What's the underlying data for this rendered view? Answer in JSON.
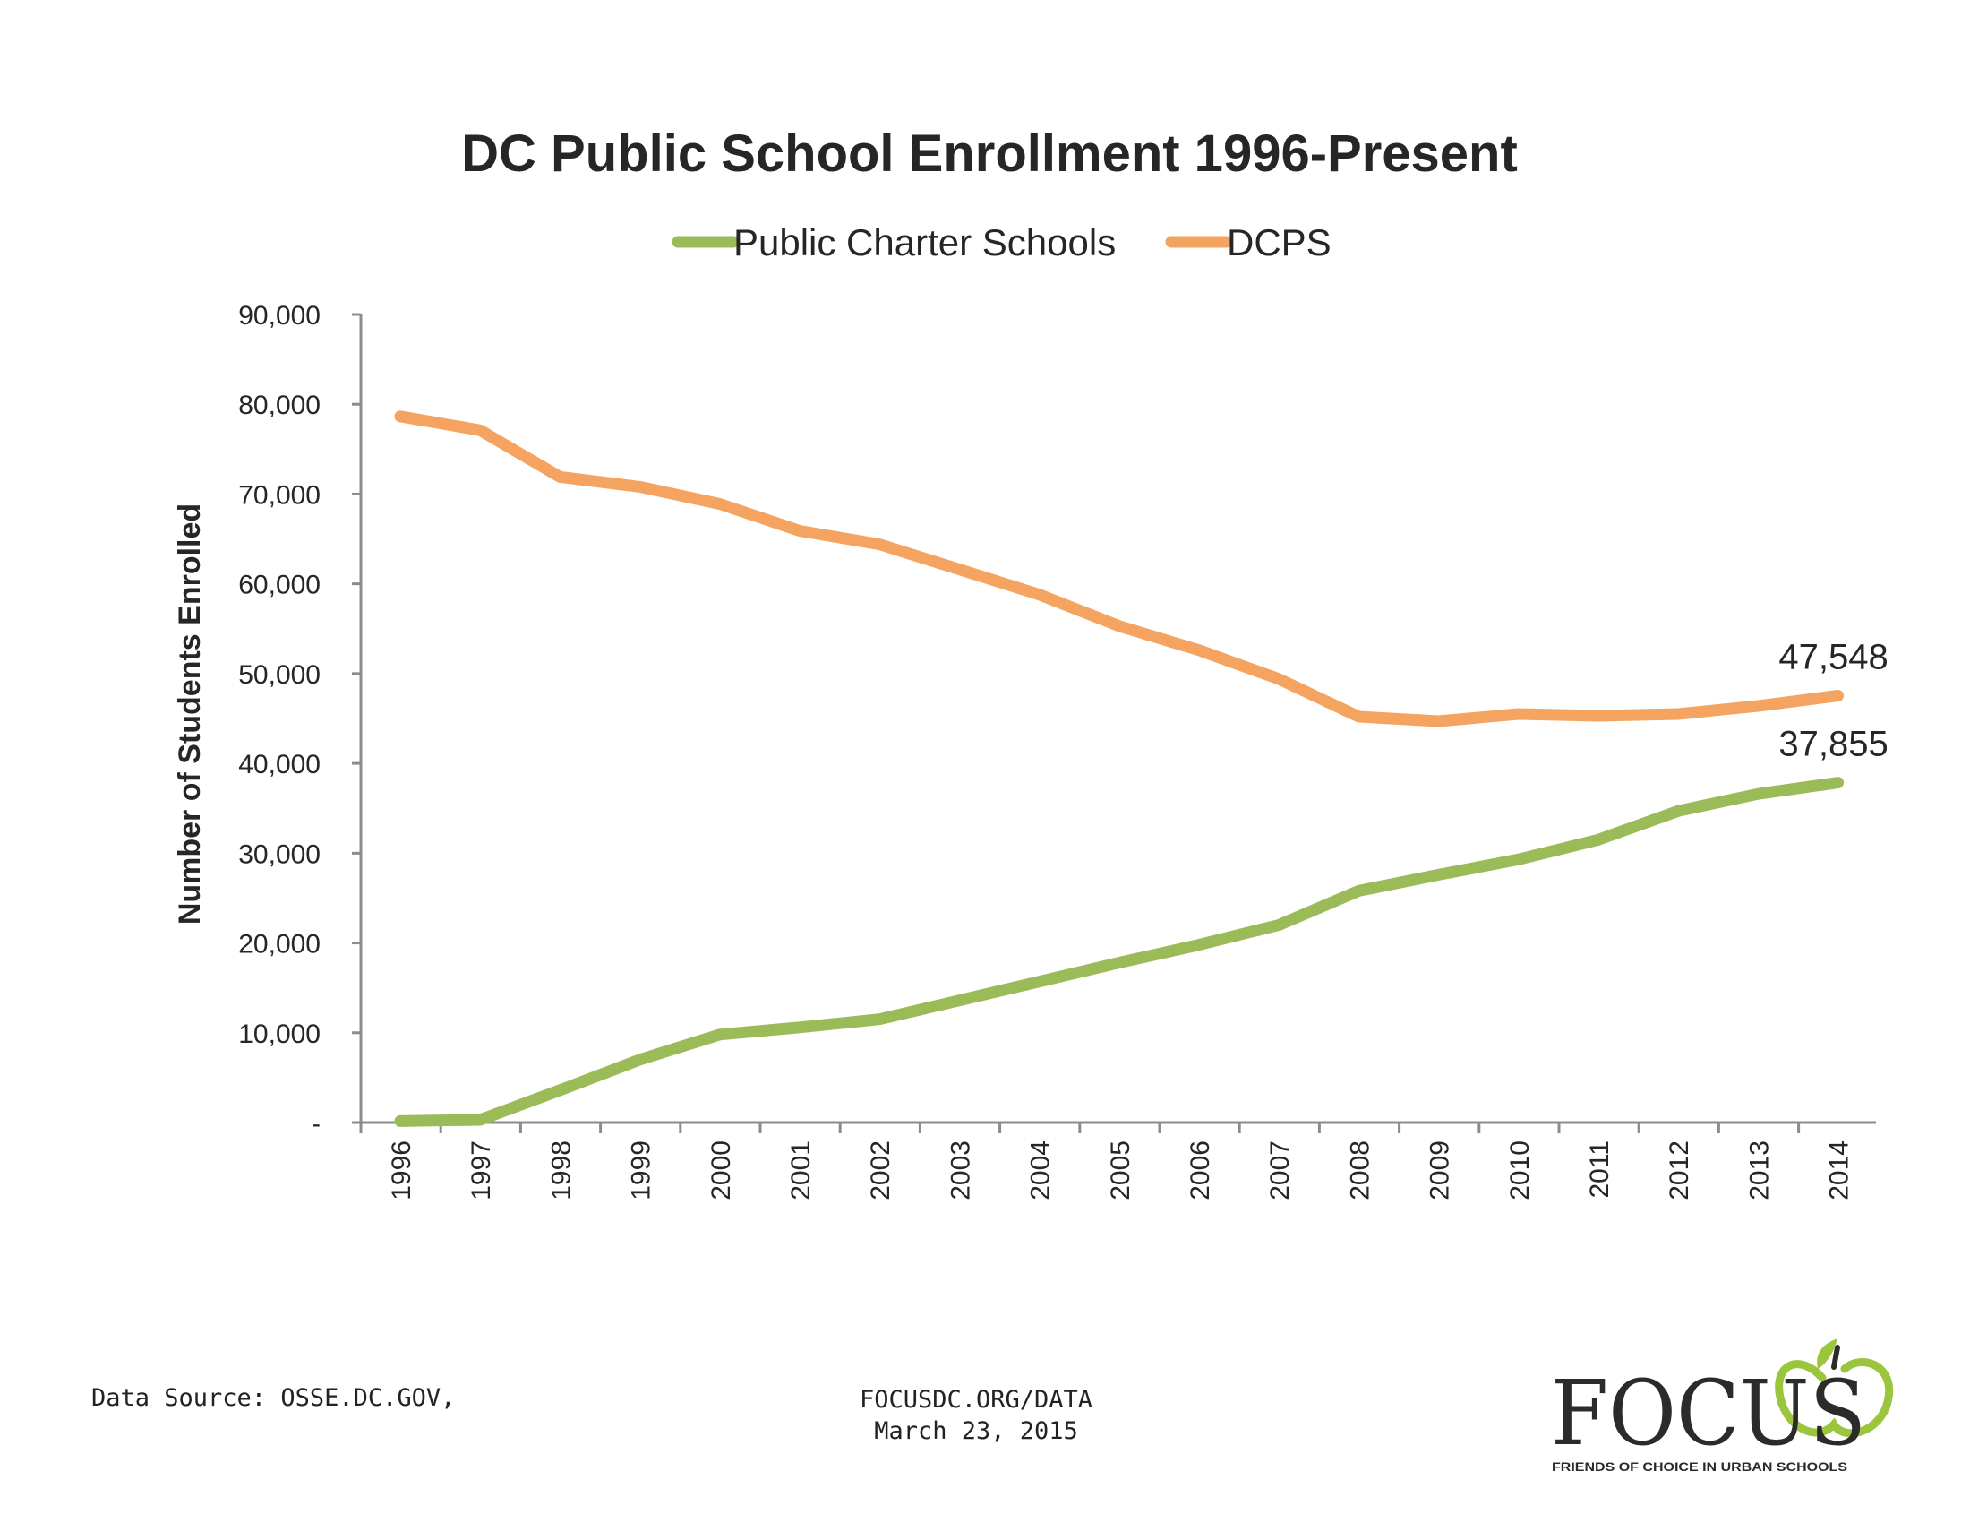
{
  "chart_data": {
    "type": "line",
    "title": "DC Public School Enrollment 1996-Present",
    "xlabel": "",
    "ylabel": "Number of Students Enrolled",
    "ylim": [
      0,
      90000
    ],
    "yticks": [
      0,
      10000,
      20000,
      30000,
      40000,
      50000,
      60000,
      70000,
      80000,
      90000
    ],
    "ytick_labels": [
      "-",
      "10,000",
      "20,000",
      "30,000",
      "40,000",
      "50,000",
      "60,000",
      "70,000",
      "80,000",
      "90,000"
    ],
    "categories": [
      "1996",
      "1997",
      "1998",
      "1999",
      "2000",
      "2001",
      "2002",
      "2003",
      "2004",
      "2005",
      "2006",
      "2007",
      "2008",
      "2009",
      "2010",
      "2011",
      "2012",
      "2013",
      "2014"
    ],
    "legend_position": "top-center",
    "grid": false,
    "series": [
      {
        "name": "Public Charter Schools",
        "color": "#9bbb59",
        "values": [
          160,
          300,
          3600,
          7000,
          9800,
          10600,
          11500,
          13600,
          15700,
          17800,
          19800,
          22000,
          25800,
          27600,
          29300,
          31500,
          34700,
          36600,
          37855
        ],
        "end_label": "37,855"
      },
      {
        "name": "DCPS",
        "color": "#f4a460",
        "values": [
          78650,
          77100,
          71900,
          70800,
          68900,
          65900,
          64400,
          61600,
          58800,
          55300,
          52600,
          49400,
          45200,
          44700,
          45500,
          45300,
          45500,
          46400,
          47548
        ],
        "end_label": "47,548"
      }
    ]
  },
  "footer": {
    "source": "Data Source: OSSE.DC.GOV,",
    "url": "FOCUSDC.ORG/DATA",
    "date": "March 23, 2015"
  },
  "logo": {
    "word": "FOCUS",
    "tagline": "FRIENDS OF CHOICE IN URBAN SCHOOLS"
  }
}
